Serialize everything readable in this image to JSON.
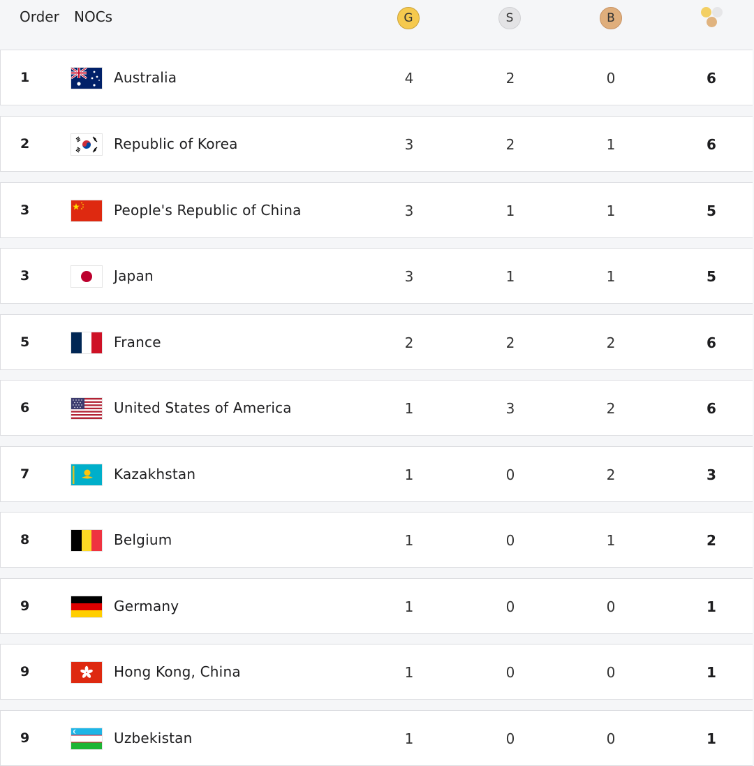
{
  "header": {
    "order_label": "Order",
    "nocs_label": "NOCs",
    "gold_label": "G",
    "silver_label": "S",
    "bronze_label": "B",
    "total_icon": "medals-total-icon"
  },
  "colors": {
    "gold": "#f5c94e",
    "silver": "#e3e3e5",
    "bronze": "#dfae7c",
    "row_bg": "#ffffff",
    "page_bg": "#f5f6f8"
  },
  "rows": [
    {
      "order": "1",
      "country": "Australia",
      "flag": "australia-flag",
      "gold": "4",
      "silver": "2",
      "bronze": "0",
      "total": "6"
    },
    {
      "order": "2",
      "country": "Republic of Korea",
      "flag": "korea-flag",
      "gold": "3",
      "silver": "2",
      "bronze": "1",
      "total": "6"
    },
    {
      "order": "3",
      "country": "People's Republic of China",
      "flag": "china-flag",
      "gold": "3",
      "silver": "1",
      "bronze": "1",
      "total": "5"
    },
    {
      "order": "3",
      "country": "Japan",
      "flag": "japan-flag",
      "gold": "3",
      "silver": "1",
      "bronze": "1",
      "total": "5"
    },
    {
      "order": "5",
      "country": "France",
      "flag": "france-flag",
      "gold": "2",
      "silver": "2",
      "bronze": "2",
      "total": "6"
    },
    {
      "order": "6",
      "country": "United States of America",
      "flag": "usa-flag",
      "gold": "1",
      "silver": "3",
      "bronze": "2",
      "total": "6"
    },
    {
      "order": "7",
      "country": "Kazakhstan",
      "flag": "kazakhstan-flag",
      "gold": "1",
      "silver": "0",
      "bronze": "2",
      "total": "3"
    },
    {
      "order": "8",
      "country": "Belgium",
      "flag": "belgium-flag",
      "gold": "1",
      "silver": "0",
      "bronze": "1",
      "total": "2"
    },
    {
      "order": "9",
      "country": "Germany",
      "flag": "germany-flag",
      "gold": "1",
      "silver": "0",
      "bronze": "0",
      "total": "1"
    },
    {
      "order": "9",
      "country": "Hong Kong, China",
      "flag": "hong-kong-flag",
      "gold": "1",
      "silver": "0",
      "bronze": "0",
      "total": "1"
    },
    {
      "order": "9",
      "country": "Uzbekistan",
      "flag": "uzbekistan-flag",
      "gold": "1",
      "silver": "0",
      "bronze": "0",
      "total": "1"
    }
  ]
}
